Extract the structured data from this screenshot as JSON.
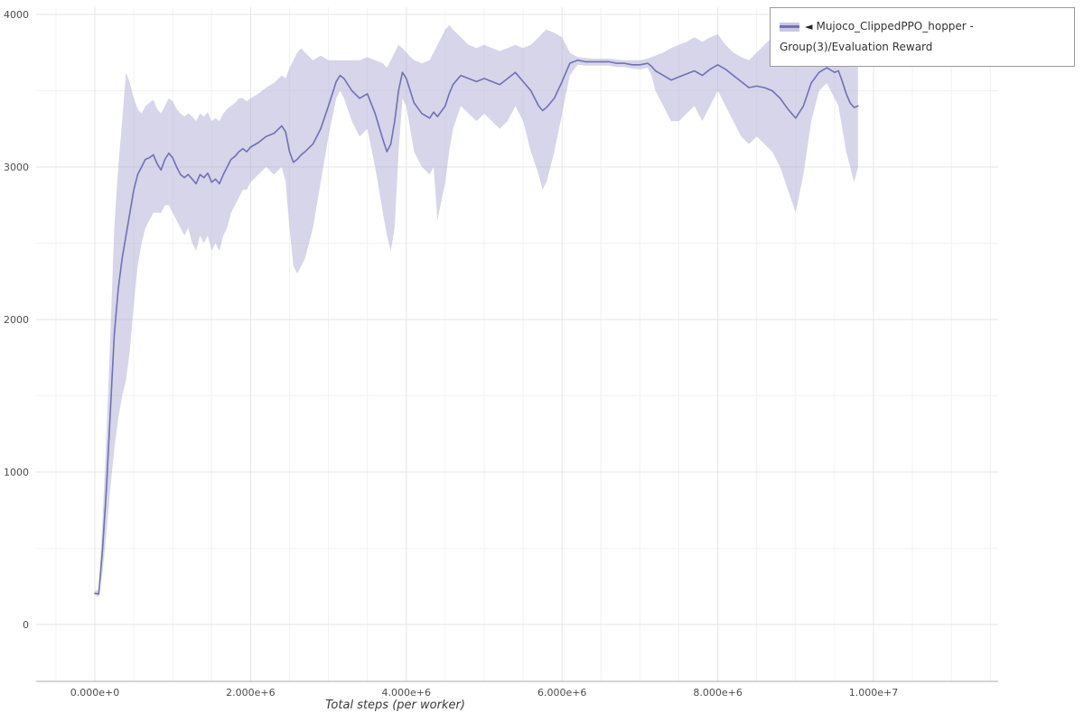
{
  "legend": {
    "marker": "◄",
    "label": "Mujoco_ClippedPPO_hopper - Group(3)/Evaluation Reward"
  },
  "colors": {
    "line": "#6f71b3",
    "band": "#aeacd4",
    "grid_major": "#e4e4e4",
    "grid_minor": "#f2f2f2",
    "axis": "#aaaaaa",
    "tick_text": "#4d4d4d"
  },
  "chart_data": {
    "type": "line",
    "title": "",
    "xlabel": "Total steps (per worker)",
    "ylabel": "",
    "x_scale": 1000000,
    "xlim_millions": [
      0,
      10
    ],
    "ylim": [
      0,
      4000
    ],
    "grid": true,
    "legend_position": "top-right",
    "x_ticks": [
      {
        "value": 0,
        "label": "0.000e+0"
      },
      {
        "value": 2,
        "label": "2.000e+6"
      },
      {
        "value": 4,
        "label": "4.000e+6"
      },
      {
        "value": 6,
        "label": "6.000e+6"
      },
      {
        "value": 8,
        "label": "8.000e+6"
      },
      {
        "value": 10,
        "label": "1.000e+7"
      }
    ],
    "y_ticks": [
      {
        "value": 0,
        "label": "0"
      },
      {
        "value": 1000,
        "label": "1000"
      },
      {
        "value": 2000,
        "label": "2000"
      },
      {
        "value": 3000,
        "label": "3000"
      },
      {
        "value": 4000,
        "label": "4000"
      }
    ],
    "series": [
      {
        "name": "Mujoco_ClippedPPO_hopper - Group(3)/Evaluation Reward",
        "line_color": "#6f71b3",
        "band_color": "#aeacd4",
        "band_opacity": 0.5,
        "points_format": [
          "x_millions",
          "lower",
          "mean",
          "upper"
        ],
        "points": [
          [
            0.0,
            195,
            205,
            220
          ],
          [
            0.05,
            180,
            200,
            230
          ],
          [
            0.1,
            350,
            500,
            700
          ],
          [
            0.15,
            600,
            900,
            1250
          ],
          [
            0.2,
            900,
            1400,
            1900
          ],
          [
            0.25,
            1150,
            1900,
            2600
          ],
          [
            0.3,
            1350,
            2200,
            3000
          ],
          [
            0.35,
            1500,
            2400,
            3300
          ],
          [
            0.4,
            1600,
            2550,
            3620
          ],
          [
            0.45,
            1800,
            2700,
            3550
          ],
          [
            0.5,
            2100,
            2850,
            3450
          ],
          [
            0.55,
            2350,
            2950,
            3380
          ],
          [
            0.6,
            2500,
            3000,
            3350
          ],
          [
            0.65,
            2600,
            3050,
            3400
          ],
          [
            0.7,
            2650,
            3060,
            3420
          ],
          [
            0.75,
            2700,
            3080,
            3440
          ],
          [
            0.8,
            2700,
            3020,
            3380
          ],
          [
            0.85,
            2700,
            2980,
            3350
          ],
          [
            0.9,
            2750,
            3050,
            3400
          ],
          [
            0.95,
            2750,
            3090,
            3450
          ],
          [
            1.0,
            2700,
            3060,
            3430
          ],
          [
            1.05,
            2650,
            3000,
            3380
          ],
          [
            1.1,
            2600,
            2950,
            3350
          ],
          [
            1.15,
            2550,
            2930,
            3330
          ],
          [
            1.2,
            2600,
            2950,
            3350
          ],
          [
            1.25,
            2500,
            2920,
            3330
          ],
          [
            1.3,
            2450,
            2890,
            3300
          ],
          [
            1.35,
            2550,
            2950,
            3350
          ],
          [
            1.4,
            2500,
            2930,
            3330
          ],
          [
            1.45,
            2550,
            2960,
            3360
          ],
          [
            1.5,
            2450,
            2900,
            3300
          ],
          [
            1.55,
            2500,
            2920,
            3320
          ],
          [
            1.6,
            2450,
            2890,
            3300
          ],
          [
            1.65,
            2550,
            2950,
            3350
          ],
          [
            1.7,
            2600,
            3000,
            3380
          ],
          [
            1.75,
            2700,
            3050,
            3400
          ],
          [
            1.8,
            2750,
            3070,
            3420
          ],
          [
            1.85,
            2800,
            3100,
            3450
          ],
          [
            1.9,
            2850,
            3120,
            3450
          ],
          [
            1.95,
            2850,
            3100,
            3430
          ],
          [
            2.0,
            2900,
            3130,
            3450
          ],
          [
            2.1,
            2950,
            3160,
            3480
          ],
          [
            2.2,
            3000,
            3200,
            3520
          ],
          [
            2.3,
            2950,
            3220,
            3550
          ],
          [
            2.4,
            3000,
            3270,
            3600
          ],
          [
            2.45,
            2900,
            3230,
            3580
          ],
          [
            2.5,
            2600,
            3100,
            3650
          ],
          [
            2.55,
            2350,
            3030,
            3700
          ],
          [
            2.6,
            2300,
            3050,
            3750
          ],
          [
            2.65,
            2350,
            3080,
            3780
          ],
          [
            2.7,
            2400,
            3100,
            3750
          ],
          [
            2.8,
            2600,
            3150,
            3700
          ],
          [
            2.9,
            2900,
            3250,
            3730
          ],
          [
            3.0,
            3200,
            3400,
            3700
          ],
          [
            3.1,
            3450,
            3560,
            3700
          ],
          [
            3.15,
            3500,
            3600,
            3700
          ],
          [
            3.2,
            3450,
            3580,
            3700
          ],
          [
            3.3,
            3300,
            3500,
            3700
          ],
          [
            3.4,
            3200,
            3450,
            3700
          ],
          [
            3.5,
            3250,
            3480,
            3720
          ],
          [
            3.6,
            3000,
            3350,
            3700
          ],
          [
            3.7,
            2700,
            3180,
            3680
          ],
          [
            3.75,
            2550,
            3100,
            3650
          ],
          [
            3.8,
            2450,
            3150,
            3700
          ],
          [
            3.85,
            2600,
            3300,
            3750
          ],
          [
            3.9,
            3100,
            3500,
            3800
          ],
          [
            3.95,
            3450,
            3620,
            3780
          ],
          [
            4.0,
            3400,
            3580,
            3750
          ],
          [
            4.1,
            3100,
            3420,
            3700
          ],
          [
            4.2,
            3000,
            3350,
            3680
          ],
          [
            4.3,
            2950,
            3320,
            3700
          ],
          [
            4.35,
            3000,
            3360,
            3750
          ],
          [
            4.4,
            2650,
            3330,
            3800
          ],
          [
            4.5,
            2900,
            3400,
            3900
          ],
          [
            4.55,
            3100,
            3480,
            3930
          ],
          [
            4.6,
            3250,
            3540,
            3900
          ],
          [
            4.7,
            3400,
            3600,
            3850
          ],
          [
            4.8,
            3350,
            3580,
            3800
          ],
          [
            4.9,
            3300,
            3560,
            3780
          ],
          [
            5.0,
            3350,
            3580,
            3800
          ],
          [
            5.1,
            3300,
            3560,
            3780
          ],
          [
            5.2,
            3250,
            3540,
            3760
          ],
          [
            5.3,
            3300,
            3580,
            3780
          ],
          [
            5.4,
            3400,
            3620,
            3800
          ],
          [
            5.5,
            3300,
            3560,
            3780
          ],
          [
            5.6,
            3100,
            3500,
            3800
          ],
          [
            5.7,
            2950,
            3400,
            3850
          ],
          [
            5.75,
            2850,
            3370,
            3880
          ],
          [
            5.8,
            2900,
            3390,
            3900
          ],
          [
            5.9,
            3100,
            3450,
            3880
          ],
          [
            6.0,
            3350,
            3560,
            3850
          ],
          [
            6.1,
            3600,
            3680,
            3750
          ],
          [
            6.2,
            3670,
            3700,
            3720
          ],
          [
            6.3,
            3665,
            3690,
            3715
          ],
          [
            6.4,
            3665,
            3690,
            3710
          ],
          [
            6.5,
            3665,
            3690,
            3710
          ],
          [
            6.6,
            3665,
            3690,
            3710
          ],
          [
            6.7,
            3655,
            3680,
            3705
          ],
          [
            6.8,
            3655,
            3680,
            3700
          ],
          [
            6.9,
            3645,
            3670,
            3700
          ],
          [
            7.0,
            3640,
            3670,
            3700
          ],
          [
            7.1,
            3650,
            3680,
            3710
          ],
          [
            7.15,
            3600,
            3660,
            3720
          ],
          [
            7.2,
            3500,
            3630,
            3730
          ],
          [
            7.3,
            3400,
            3600,
            3750
          ],
          [
            7.4,
            3300,
            3570,
            3780
          ],
          [
            7.5,
            3300,
            3590,
            3800
          ],
          [
            7.6,
            3350,
            3610,
            3820
          ],
          [
            7.7,
            3400,
            3630,
            3850
          ],
          [
            7.8,
            3300,
            3600,
            3820
          ],
          [
            7.9,
            3400,
            3640,
            3850
          ],
          [
            8.0,
            3500,
            3670,
            3870
          ],
          [
            8.1,
            3400,
            3640,
            3800
          ],
          [
            8.2,
            3300,
            3600,
            3750
          ],
          [
            8.3,
            3200,
            3560,
            3720
          ],
          [
            8.4,
            3150,
            3520,
            3700
          ],
          [
            8.5,
            3200,
            3530,
            3750
          ],
          [
            8.6,
            3150,
            3520,
            3800
          ],
          [
            8.7,
            3100,
            3500,
            3850
          ],
          [
            8.8,
            3000,
            3450,
            3880
          ],
          [
            8.9,
            2850,
            3380,
            3900
          ],
          [
            9.0,
            2700,
            3320,
            3940
          ],
          [
            9.1,
            2950,
            3400,
            3900
          ],
          [
            9.2,
            3300,
            3550,
            3850
          ],
          [
            9.3,
            3500,
            3620,
            3800
          ],
          [
            9.4,
            3550,
            3650,
            3750
          ],
          [
            9.5,
            3450,
            3620,
            3750
          ],
          [
            9.55,
            3400,
            3630,
            3760
          ],
          [
            9.6,
            3250,
            3560,
            3780
          ],
          [
            9.65,
            3100,
            3480,
            3800
          ],
          [
            9.7,
            3000,
            3420,
            3810
          ],
          [
            9.75,
            2900,
            3390,
            3800
          ],
          [
            9.8,
            3000,
            3400,
            3780
          ]
        ]
      }
    ]
  }
}
